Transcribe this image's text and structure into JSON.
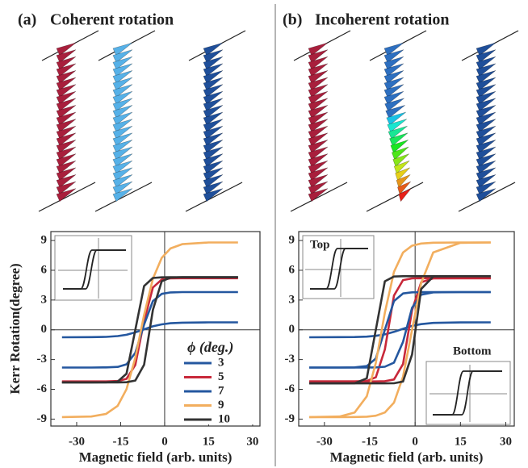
{
  "chart_data": [
    {
      "type": "line",
      "panel_label": "(a)",
      "title": "Coherent rotation",
      "ylabel": "Kerr Rotation(degree)",
      "xlabel": "Magnetic field (arb. units)",
      "xlim": [
        -38.8,
        32.5
      ],
      "ylim": [
        -9.7,
        9.9
      ],
      "xticks": [
        -30,
        -15,
        0,
        15,
        30
      ],
      "yticks": [
        9,
        6,
        3,
        0,
        -3,
        -6,
        -9
      ],
      "legend_title": "ϕ (deg.)",
      "x": [
        -35,
        -25,
        -20,
        -16,
        -13,
        -10,
        -7,
        -4,
        -1,
        2,
        6,
        15,
        25
      ],
      "series": [
        {
          "name": "3",
          "color": "#24579f",
          "values": [
            -0.75,
            -0.74,
            -0.71,
            -0.63,
            -0.5,
            -0.26,
            0.05,
            0.35,
            0.55,
            0.66,
            0.72,
            0.75,
            0.75
          ]
        },
        {
          "name": "5",
          "color": "#c8283a",
          "values": [
            -5.2,
            -5.2,
            -5.2,
            -5.16,
            -4.94,
            -3.54,
            0.88,
            4.26,
            5.07,
            5.18,
            5.2,
            5.2,
            5.2
          ]
        },
        {
          "name": "7",
          "color": "#24579f",
          "values": [
            -3.8,
            -3.8,
            -3.79,
            -3.74,
            -3.48,
            -2.32,
            0.53,
            2.9,
            3.62,
            3.77,
            3.8,
            3.8,
            3.8
          ]
        },
        {
          "name": "9",
          "color": "#f2ae5e",
          "values": [
            -8.8,
            -8.74,
            -8.48,
            -7.66,
            -5.98,
            -2.82,
            1.5,
            5.15,
            7.25,
            8.2,
            8.63,
            8.8,
            8.8
          ]
        },
        {
          "name": "10",
          "color": "#333333",
          "values": [
            -5.3,
            -5.3,
            -5.29,
            -5.22,
            -4.42,
            0,
            4.42,
            5.22,
            5.29,
            5.3,
            5.3,
            5.3,
            5.3
          ],
          "values_return": [
            -5.3,
            -5.3,
            -5.3,
            -5.3,
            -5.28,
            -5.11,
            -3.52,
            2.01,
            4.89,
            5.26,
            5.3,
            5.3,
            5.3
          ]
        }
      ]
    },
    {
      "type": "line",
      "panel_label": "(b)",
      "title": "Incoherent rotation",
      "xlabel": "Magnetic field (arb. units)",
      "xlim": [
        -38.5,
        32.8
      ],
      "ylim": [
        -9.7,
        9.9
      ],
      "xticks": [
        -30,
        -15,
        0,
        15,
        30
      ],
      "yticks": [
        9,
        6,
        3,
        0,
        -3,
        -6,
        -9
      ],
      "annotations": [
        "Top",
        "Bottom"
      ],
      "x": [
        -35,
        -25,
        -20,
        -16,
        -13,
        -10,
        -7,
        -4,
        -1,
        2,
        6,
        15,
        25
      ],
      "series": [
        {
          "color": "#24579f",
          "values": [
            -0.75,
            -0.74,
            -0.73,
            -0.69,
            -0.61,
            -0.46,
            -0.21,
            0.1,
            0.39,
            0.57,
            0.69,
            0.74,
            0.75
          ]
        },
        {
          "color": "#c8283a",
          "values": [
            -5.2,
            -5.2,
            -5.2,
            -5.16,
            -4.79,
            -1.98,
            3.45,
            5.01,
            5.18,
            5.2,
            5.2,
            5.2,
            5.2
          ],
          "values_return": [
            -5.2,
            -5.2,
            -5.2,
            -5.2,
            -5.2,
            -5.18,
            -5.01,
            -3.45,
            1.98,
            4.79,
            5.18,
            5.2,
            5.2
          ]
        },
        {
          "color": "#24579f",
          "values": [
            -3.8,
            -3.8,
            -3.79,
            -3.66,
            -2.9,
            0,
            2.9,
            3.66,
            3.78,
            3.8,
            3.8,
            3.8,
            3.8
          ],
          "values_return": [
            -3.8,
            -3.8,
            -3.8,
            -3.8,
            -3.79,
            -3.72,
            -3.31,
            -1.22,
            2.22,
            3.54,
            3.78,
            3.8,
            3.8
          ]
        },
        {
          "color": "#f2ae5e",
          "values": [
            -8.8,
            -8.74,
            -8.33,
            -6.71,
            -3.34,
            1.73,
            5.84,
            7.79,
            8.48,
            8.7,
            8.78,
            8.8,
            8.8
          ],
          "values_return": [
            -8.8,
            -8.8,
            -8.79,
            -8.76,
            -8.66,
            -8.33,
            -7.34,
            -4.73,
            0,
            4.73,
            7.79,
            8.77,
            8.8
          ]
        },
        {
          "color": "#333333",
          "values": [
            -5.4,
            -5.4,
            -5.39,
            -4.89,
            0,
            4.89,
            5.37,
            5.4,
            5.4,
            5.4,
            5.4,
            5.4,
            5.4
          ],
          "values_return": [
            -5.4,
            -5.4,
            -5.4,
            -5.4,
            -5.4,
            -5.4,
            -5.39,
            -5.21,
            -2.49,
            4.11,
            5.37,
            5.4,
            5.4
          ]
        }
      ]
    }
  ]
}
